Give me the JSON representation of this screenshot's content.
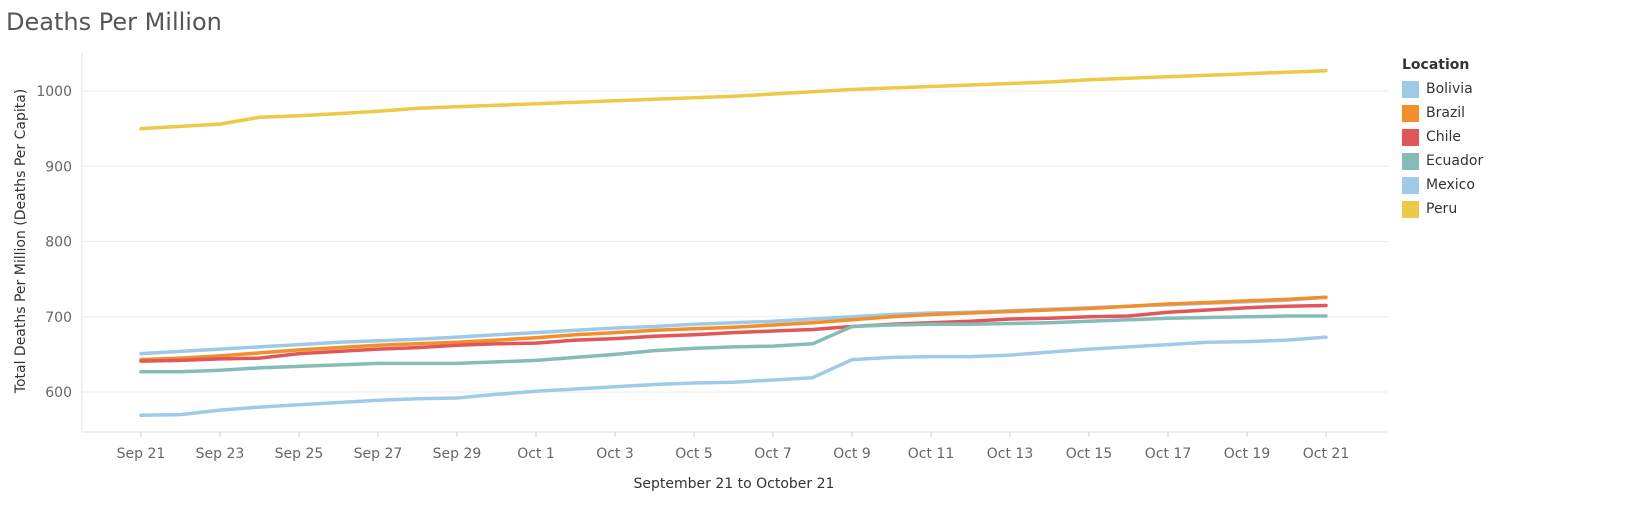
{
  "chart_data": {
    "type": "line",
    "title": "Deaths Per Million",
    "xlabel": "September 21 to October 21",
    "ylabel": "Total Deaths Per Million (Deaths Per Capita)",
    "ylim": [
      550,
      1050
    ],
    "yticks": [
      600,
      700,
      800,
      900,
      1000
    ],
    "x": [
      "Sep 21",
      "Sep 22",
      "Sep 23",
      "Sep 24",
      "Sep 25",
      "Sep 26",
      "Sep 27",
      "Sep 28",
      "Sep 29",
      "Sep 30",
      "Oct 1",
      "Oct 2",
      "Oct 3",
      "Oct 4",
      "Oct 5",
      "Oct 6",
      "Oct 7",
      "Oct 8",
      "Oct 9",
      "Oct 10",
      "Oct 11",
      "Oct 12",
      "Oct 13",
      "Oct 14",
      "Oct 15",
      "Oct 16",
      "Oct 17",
      "Oct 18",
      "Oct 19",
      "Oct 20",
      "Oct 21"
    ],
    "xtick_labels": [
      "Sep 21",
      "Sep 23",
      "Sep 25",
      "Sep 27",
      "Sep 29",
      "Oct 1",
      "Oct 3",
      "Oct 5",
      "Oct 7",
      "Oct 9",
      "Oct 11",
      "Oct 13",
      "Oct 15",
      "Oct 17",
      "Oct 19",
      "Oct 21"
    ],
    "grid": true,
    "legend_title": "Location",
    "legend_position": "right",
    "series": [
      {
        "name": "Bolivia",
        "color": "#9fcae6",
        "values": [
          651,
          654,
          657,
          660,
          663,
          666,
          668,
          670,
          673,
          676,
          679,
          682,
          685,
          687,
          690,
          692,
          694,
          697,
          700,
          703,
          705,
          706,
          708,
          710,
          712,
          714,
          716,
          718,
          720,
          722,
          726
        ]
      },
      {
        "name": "Brazil",
        "color": "#f28e2b",
        "values": [
          643,
          645,
          648,
          652,
          656,
          659,
          662,
          664,
          666,
          669,
          672,
          676,
          679,
          682,
          684,
          686,
          689,
          692,
          696,
          700,
          703,
          705,
          707,
          709,
          711,
          714,
          717,
          719,
          721,
          723,
          726
        ]
      },
      {
        "name": "Chile",
        "color": "#e15759",
        "values": [
          641,
          642,
          644,
          645,
          651,
          654,
          657,
          659,
          662,
          664,
          665,
          669,
          671,
          674,
          676,
          679,
          681,
          683,
          687,
          690,
          692,
          694,
          697,
          698,
          700,
          701,
          706,
          709,
          712,
          714,
          715
        ]
      },
      {
        "name": "Ecuador",
        "color": "#86bcb6",
        "values": [
          627,
          627,
          629,
          632,
          634,
          636,
          638,
          638,
          638,
          640,
          642,
          646,
          650,
          655,
          658,
          660,
          661,
          664,
          687,
          689,
          690,
          690,
          691,
          692,
          694,
          696,
          698,
          699,
          700,
          701,
          701
        ]
      },
      {
        "name": "Mexico",
        "color": "#a0cbe8",
        "values": [
          569,
          570,
          576,
          580,
          583,
          586,
          589,
          591,
          592,
          597,
          601,
          604,
          607,
          610,
          612,
          613,
          616,
          619,
          643,
          646,
          647,
          647,
          649,
          653,
          657,
          660,
          663,
          666,
          667,
          669,
          673
        ]
      },
      {
        "name": "Peru",
        "color": "#edc948",
        "values": [
          950,
          953,
          956,
          965,
          967,
          970,
          973,
          977,
          979,
          981,
          983,
          985,
          987,
          989,
          991,
          993,
          996,
          999,
          1002,
          1004,
          1006,
          1008,
          1010,
          1012,
          1015,
          1017,
          1019,
          1021,
          1023,
          1025,
          1027
        ]
      }
    ]
  }
}
